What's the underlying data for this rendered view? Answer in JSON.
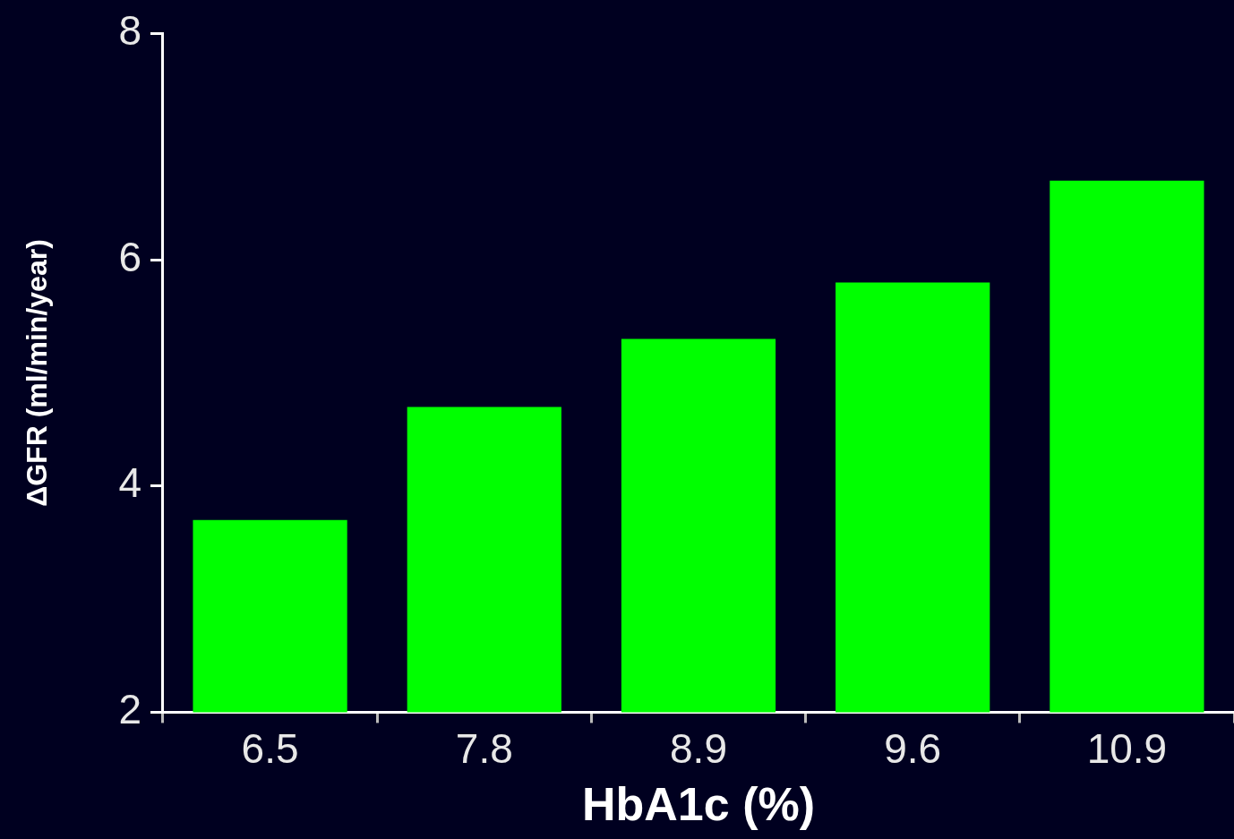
{
  "chart_data": {
    "type": "bar",
    "categories": [
      "6.5",
      "7.8",
      "8.9",
      "9.6",
      "10.9"
    ],
    "values": [
      3.7,
      4.7,
      5.3,
      5.8,
      6.7
    ],
    "color": "#00ff00",
    "xlabel": "HbA1c (%)",
    "ylabel": "ΔGFR (ml/min/year)",
    "ylim": [
      2,
      8
    ],
    "yticks": [
      2,
      4,
      6,
      8
    ],
    "grid": false,
    "legend": false
  }
}
